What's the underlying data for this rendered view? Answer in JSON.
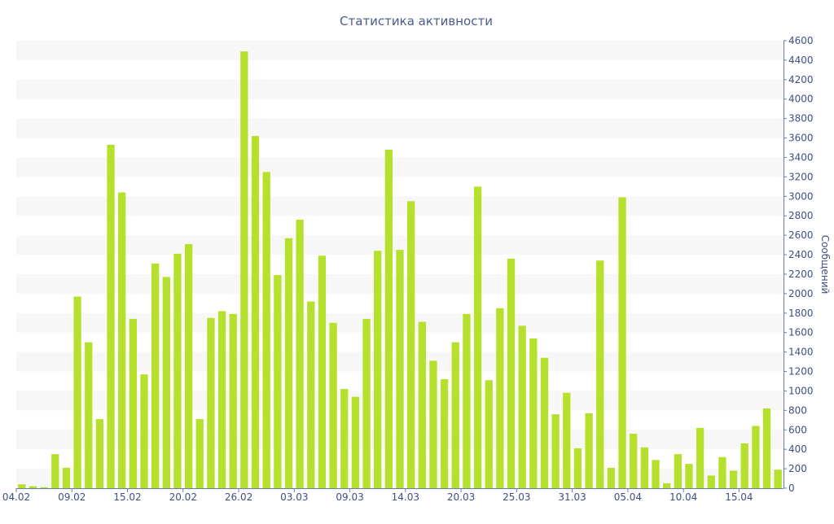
{
  "chart_data": {
    "type": "bar",
    "title": "Статистика активности",
    "ylabel": "Сообщений",
    "xlabel": "",
    "ylim": [
      0,
      4600
    ],
    "y_ticks": [
      0,
      200,
      400,
      600,
      800,
      1000,
      1200,
      1400,
      1600,
      1800,
      2000,
      2200,
      2400,
      2600,
      2800,
      3000,
      3200,
      3400,
      3600,
      3800,
      4000,
      4200,
      4400,
      4600
    ],
    "y_axis_side": "right",
    "grid": "alternating horizontal bands",
    "bar_color": "#b5e02b",
    "band_color": "#f7f7f7",
    "x_tick_labels": [
      "04.02",
      "09.02",
      "15.02",
      "20.02",
      "26.02",
      "03.03",
      "09.03",
      "14.03",
      "20.03",
      "25.03",
      "31.03",
      "05.04",
      "10.04",
      "15.04"
    ],
    "x_tick_indices": [
      0,
      5,
      10,
      15,
      20,
      25,
      30,
      35,
      40,
      45,
      50,
      55,
      60,
      65
    ],
    "values": [
      40,
      20,
      10,
      350,
      210,
      1970,
      1500,
      710,
      3530,
      3040,
      1740,
      1170,
      2310,
      2170,
      2410,
      2510,
      710,
      1750,
      1820,
      1790,
      4490,
      3620,
      3250,
      2190,
      2570,
      2760,
      1920,
      2390,
      1700,
      1020,
      940,
      1740,
      2440,
      3480,
      2450,
      2950,
      1710,
      1310,
      1120,
      1500,
      1790,
      3100,
      1110,
      1850,
      2360,
      1670,
      1540,
      1340,
      760,
      980,
      410,
      770,
      2340,
      210,
      2990,
      560,
      420,
      290,
      50,
      350,
      250,
      620,
      130,
      320,
      180,
      460,
      640,
      820,
      190
    ]
  }
}
